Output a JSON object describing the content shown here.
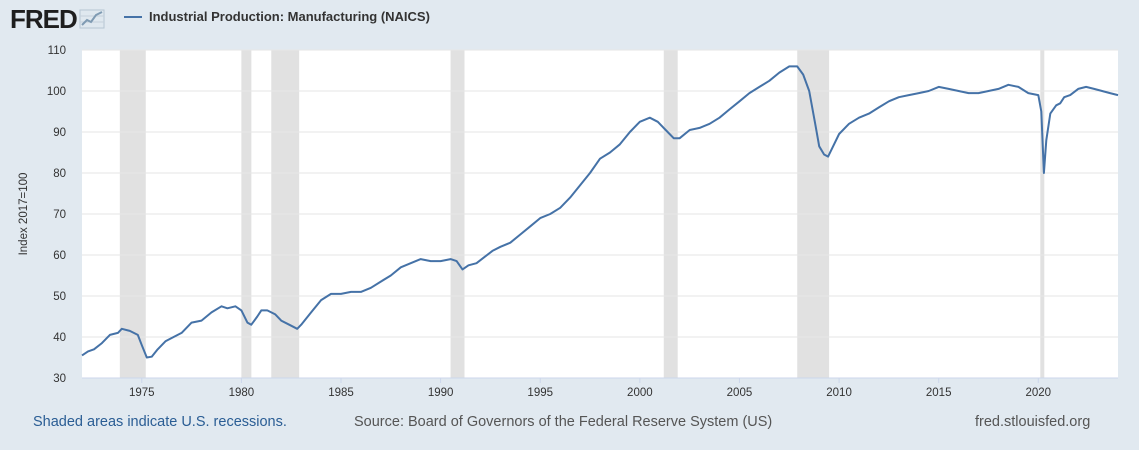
{
  "logo": {
    "text": "FRED"
  },
  "legend": {
    "label": "Industrial Production: Manufacturing (NAICS)",
    "color": "#4572a7"
  },
  "footer": {
    "note": "Shaded areas indicate U.S. recessions.",
    "source": "Source: Board of Governors of the Federal Reserve System (US)",
    "site": "fred.stlouisfed.org"
  },
  "chart_data": {
    "type": "line",
    "title": "",
    "xlabel": "",
    "ylabel": "Index 2017=100",
    "xlim": [
      1972.0,
      2024.0
    ],
    "ylim": [
      30,
      110
    ],
    "yticks": [
      30,
      40,
      50,
      60,
      70,
      80,
      90,
      100,
      110
    ],
    "xticks": [
      1975,
      1980,
      1985,
      1990,
      1995,
      2000,
      2005,
      2010,
      2015,
      2020
    ],
    "grid": true,
    "legend_position": "top-left",
    "recessions": [
      [
        1973.9,
        1975.2
      ],
      [
        1980.0,
        1980.5
      ],
      [
        1981.5,
        1982.9
      ],
      [
        1990.5,
        1991.2
      ],
      [
        2001.2,
        2001.9
      ],
      [
        2007.9,
        2009.5
      ],
      [
        2020.1,
        2020.3
      ]
    ],
    "series": [
      {
        "name": "Industrial Production: Manufacturing (NAICS)",
        "color": "#4572a7",
        "x": [
          1972.0,
          1972.3,
          1972.6,
          1973.0,
          1973.4,
          1973.8,
          1974.0,
          1974.4,
          1974.8,
          1975.0,
          1975.25,
          1975.5,
          1975.8,
          1976.2,
          1976.6,
          1977.0,
          1977.5,
          1978.0,
          1978.5,
          1979.0,
          1979.3,
          1979.7,
          1980.0,
          1980.3,
          1980.5,
          1980.8,
          1981.0,
          1981.3,
          1981.7,
          1982.0,
          1982.4,
          1982.8,
          1983.0,
          1983.5,
          1984.0,
          1984.5,
          1985.0,
          1985.5,
          1986.0,
          1986.5,
          1987.0,
          1987.5,
          1988.0,
          1988.5,
          1989.0,
          1989.5,
          1990.0,
          1990.5,
          1990.8,
          1991.1,
          1991.4,
          1991.8,
          1992.2,
          1992.6,
          1993.0,
          1993.5,
          1994.0,
          1994.5,
          1995.0,
          1995.5,
          1996.0,
          1996.5,
          1997.0,
          1997.5,
          1998.0,
          1998.5,
          1999.0,
          1999.5,
          2000.0,
          2000.5,
          2000.9,
          2001.3,
          2001.7,
          2002.0,
          2002.5,
          2003.0,
          2003.5,
          2004.0,
          2004.5,
          2005.0,
          2005.5,
          2006.0,
          2006.5,
          2007.0,
          2007.5,
          2007.9,
          2008.2,
          2008.5,
          2008.8,
          2009.0,
          2009.25,
          2009.45,
          2009.7,
          2010.0,
          2010.5,
          2011.0,
          2011.5,
          2012.0,
          2012.5,
          2013.0,
          2013.5,
          2014.0,
          2014.5,
          2015.0,
          2015.5,
          2016.0,
          2016.5,
          2017.0,
          2017.5,
          2018.0,
          2018.5,
          2019.0,
          2019.5,
          2020.0,
          2020.15,
          2020.28,
          2020.4,
          2020.6,
          2020.9,
          2021.1,
          2021.3,
          2021.6,
          2022.0,
          2022.4,
          2022.8,
          2023.2,
          2023.6,
          2024.0
        ],
        "values": [
          35.5,
          36.5,
          37.0,
          38.5,
          40.5,
          41.0,
          42.0,
          41.5,
          40.5,
          38.0,
          35.0,
          35.2,
          37.0,
          39.0,
          40.0,
          41.0,
          43.5,
          44.0,
          46.0,
          47.5,
          47.0,
          47.5,
          46.5,
          43.5,
          43.0,
          45.0,
          46.5,
          46.5,
          45.5,
          44.0,
          43.0,
          42.0,
          43.0,
          46.0,
          49.0,
          50.5,
          50.5,
          51.0,
          51.0,
          52.0,
          53.5,
          55.0,
          57.0,
          58.0,
          59.0,
          58.5,
          58.5,
          59.0,
          58.5,
          56.5,
          57.5,
          58.0,
          59.5,
          61.0,
          62.0,
          63.0,
          65.0,
          67.0,
          69.0,
          70.0,
          71.5,
          74.0,
          77.0,
          80.0,
          83.5,
          85.0,
          87.0,
          90.0,
          92.5,
          93.5,
          92.5,
          90.5,
          88.5,
          88.5,
          90.5,
          91.0,
          92.0,
          93.5,
          95.5,
          97.5,
          99.5,
          101.0,
          102.5,
          104.5,
          106.0,
          106.0,
          104.0,
          100.0,
          92.0,
          86.5,
          84.5,
          84.0,
          86.5,
          89.5,
          92.0,
          93.5,
          94.5,
          96.0,
          97.5,
          98.5,
          99.0,
          99.5,
          100.0,
          101.0,
          100.5,
          100.0,
          99.5,
          99.5,
          100.0,
          100.5,
          101.5,
          101.0,
          99.5,
          99.0,
          95.0,
          80.0,
          88.0,
          94.5,
          96.5,
          97.0,
          98.5,
          99.0,
          100.5,
          101.0,
          100.5,
          100.0,
          99.5,
          99.0
        ]
      }
    ]
  }
}
